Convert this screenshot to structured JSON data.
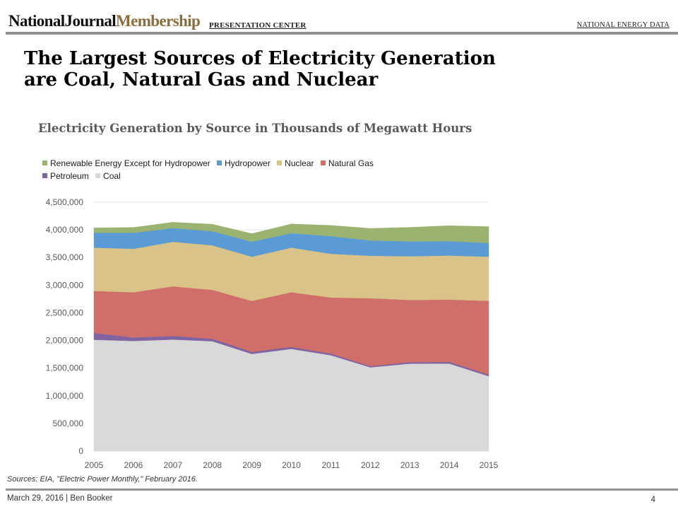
{
  "header": {
    "logo_main": "NationalJournal",
    "logo_accent": "Membership",
    "center_label": "PRESENTATION CENTER",
    "section_label": "NATIONAL ENERGY DATA"
  },
  "slide": {
    "title_line1": "The Largest Sources of Electricity Generation",
    "title_line2": "are Coal, Natural Gas and Nuclear"
  },
  "source_note": "Sources: EIA, \"Electric Power Monthly,\" February 2016.",
  "footer": {
    "date": "March 29, 2016",
    "separator": "|",
    "author": "Ben Booker",
    "page_number": "4"
  },
  "chart_data": {
    "type": "area",
    "stacked": true,
    "title": "Electricity Generation by Source in Thousands of Megawatt Hours",
    "xlabel": "",
    "ylabel": "",
    "x": [
      2005,
      2006,
      2007,
      2008,
      2009,
      2010,
      2011,
      2012,
      2013,
      2014,
      2015
    ],
    "ylim": [
      0,
      4500000
    ],
    "y_ticks": [
      0,
      500000,
      1000000,
      1500000,
      2000000,
      2500000,
      3000000,
      3500000,
      4000000,
      4500000
    ],
    "y_tick_labels": [
      "0",
      "500,000",
      "1,000,000",
      "1,500,000",
      "2,000,000",
      "2,500,000",
      "3,000,000",
      "3,500,000",
      "4,000,000",
      "4,500,000"
    ],
    "grid": true,
    "legend_position": "top-left",
    "legend_rows": [
      [
        "Renewable Energy Except for Hydropower",
        "Hydropower",
        "Nuclear",
        "Natural Gas"
      ],
      [
        "Petroleum",
        "Coal"
      ]
    ],
    "series": [
      {
        "name": "Coal",
        "color": "#d9d9d9",
        "values": [
          2013000,
          1991000,
          2016000,
          1986000,
          1756000,
          1847000,
          1733000,
          1514000,
          1581000,
          1582000,
          1354000
        ]
      },
      {
        "name": "Petroleum",
        "color": "#8064a2",
        "values": [
          122000,
          64000,
          65000,
          46000,
          38000,
          37000,
          30000,
          23000,
          27000,
          30000,
          28000
        ]
      },
      {
        "name": "Natural Gas",
        "color": "#d06f6a",
        "values": [
          761000,
          816000,
          897000,
          883000,
          921000,
          988000,
          1014000,
          1226000,
          1125000,
          1127000,
          1335000
        ]
      },
      {
        "name": "Nuclear",
        "color": "#d9c388",
        "values": [
          782000,
          787000,
          806000,
          806000,
          799000,
          807000,
          790000,
          769000,
          789000,
          797000,
          797000
        ]
      },
      {
        "name": "Hydropower",
        "color": "#5b9bd5",
        "values": [
          270000,
          289000,
          248000,
          254000,
          273000,
          260000,
          319000,
          276000,
          269000,
          259000,
          249000
        ]
      },
      {
        "name": "Renewable Energy Except for Hydropower",
        "color": "#9bb371",
        "values": [
          87000,
          96000,
          105000,
          126000,
          144000,
          167000,
          194000,
          218000,
          253000,
          280000,
          295000
        ]
      }
    ]
  }
}
